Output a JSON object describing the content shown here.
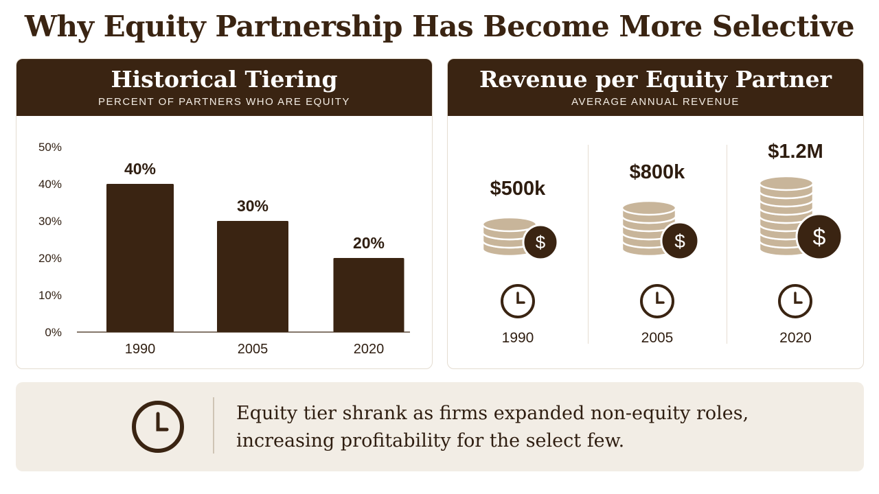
{
  "title": "Why Equity Partnership Has Become More Selective",
  "colors": {
    "brown_dark": "#3a2412",
    "coin_tan": "#c8b59a",
    "summary_bg": "#f2ede5"
  },
  "left_panel": {
    "title": "Historical Tiering",
    "subtitle": "PERCENT OF PARTNERS WHO ARE EQUITY"
  },
  "right_panel": {
    "title": "Revenue per Equity Partner",
    "subtitle": "AVERAGE ANNUAL REVENUE",
    "items": [
      {
        "year": "1990",
        "value_label": "$500k",
        "icon": "coin-stack-dollar-icon",
        "time_icon": "clock-icon"
      },
      {
        "year": "2005",
        "value_label": "$800k",
        "icon": "coin-stack-dollar-icon",
        "time_icon": "clock-icon"
      },
      {
        "year": "2020",
        "value_label": "$1.2M",
        "icon": "coin-stack-dollar-icon",
        "time_icon": "clock-icon"
      }
    ]
  },
  "summary": {
    "icon": "clock-icon",
    "line1": "Equity tier shrank as firms expanded non-equity roles,",
    "line2": "increasing profitability for the select few."
  },
  "chart_data": [
    {
      "type": "bar",
      "title": "Historical Tiering",
      "subtitle": "PERCENT OF PARTNERS WHO ARE EQUITY",
      "categories": [
        "1990",
        "2005",
        "2020"
      ],
      "values": [
        40,
        30,
        20
      ],
      "data_labels": [
        "40%",
        "30%",
        "20%"
      ],
      "yticks": [
        "0%",
        "10%",
        "20%",
        "30%",
        "40%",
        "50%"
      ],
      "ylim": [
        0,
        50
      ],
      "grid": false,
      "legend": "none"
    },
    {
      "type": "table",
      "title": "Revenue per Equity Partner",
      "subtitle": "AVERAGE ANNUAL REVENUE",
      "categories": [
        "1990",
        "2005",
        "2020"
      ],
      "values": [
        500000,
        800000,
        1200000
      ],
      "data_labels": [
        "$500k",
        "$800k",
        "$1.2M"
      ]
    }
  ]
}
